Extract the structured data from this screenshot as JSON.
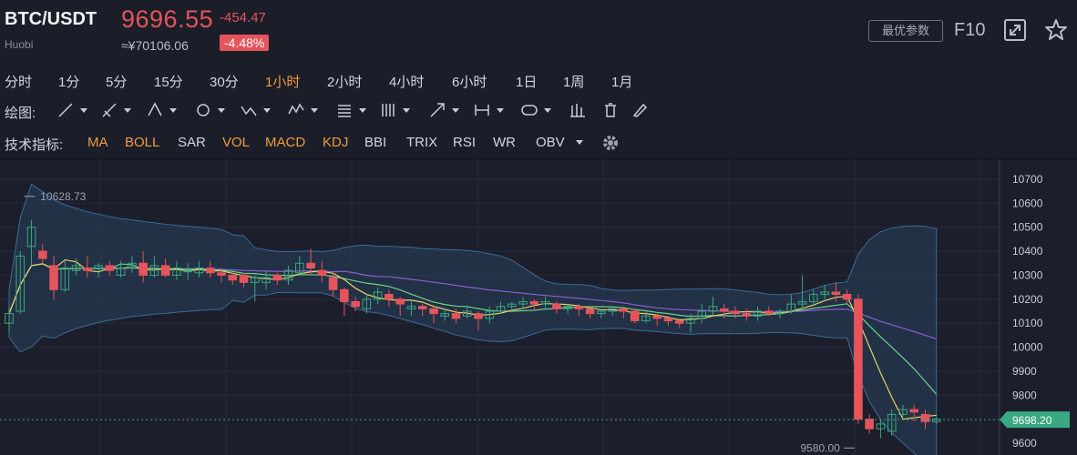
{
  "header": {
    "pair": "BTC/USDT",
    "exchange": "Huobi",
    "price": "9696.55",
    "price_cny": "≈¥70106.06",
    "change": "-454.47",
    "change_pct": "-4.48%",
    "params_button": "最优参数",
    "f10_button": "F10",
    "icons": [
      "expand-icon",
      "star-icon"
    ]
  },
  "timeframes": [
    "分时",
    "1分",
    "5分",
    "15分",
    "30分",
    "1小时",
    "2小时",
    "4小时",
    "6小时",
    "1日",
    "1周",
    "1月"
  ],
  "active_timeframe": "1小时",
  "drawing": {
    "label": "绘图:",
    "tools": [
      "line-tool-icon",
      "ray-tool-icon",
      "triangle-tool-icon",
      "circle-tool-icon",
      "wave-tool-icon",
      "pattern-tool-icon",
      "fib-tool-icon",
      "gann-tool-icon",
      "arrow-tool-icon",
      "measure-tool-icon",
      "note-tool-icon",
      "bars-icon",
      "trash-icon",
      "brush-icon"
    ]
  },
  "indicators": {
    "label": "技术指标:",
    "items": [
      {
        "name": "MA",
        "active": true
      },
      {
        "name": "BOLL",
        "active": true
      },
      {
        "name": "SAR",
        "active": false
      },
      {
        "name": "VOL",
        "active": true
      },
      {
        "name": "MACD",
        "active": true
      },
      {
        "name": "KDJ",
        "active": true
      },
      {
        "name": "BBI",
        "active": false
      },
      {
        "name": "TRIX",
        "active": false
      },
      {
        "name": "RSI",
        "active": false
      },
      {
        "name": "WR",
        "active": false
      },
      {
        "name": "OBV",
        "active": false
      }
    ],
    "settings_icon": "gear-icon"
  },
  "chart_data": {
    "type": "candlestick",
    "y_ticks": [
      10700,
      10600,
      10500,
      10400,
      10300,
      10200,
      10100,
      10000,
      9900,
      9800,
      9600
    ],
    "ylim": [
      9580,
      10700
    ],
    "high_label": "10628.73",
    "low_label": "9580.00",
    "last_price_label": "9698.20",
    "last_price": 9698.2,
    "high": 10628.73,
    "low": 9580.0,
    "colors": {
      "up": "#3aa881",
      "down": "#e5545b",
      "boll_band": "#2b4766",
      "ma5": "#e6d36b",
      "ma10": "#6fd08f",
      "ma30": "#8a5fd1"
    },
    "candles": [
      [
        10100,
        10140,
        10060,
        10170
      ],
      [
        10150,
        10380,
        10140,
        10400
      ],
      [
        10420,
        10500,
        10340,
        10530
      ],
      [
        10400,
        10370,
        10350,
        10430
      ],
      [
        10340,
        10240,
        10200,
        10380
      ],
      [
        10240,
        10330,
        10230,
        10360
      ],
      [
        10320,
        10340,
        10300,
        10370
      ],
      [
        10330,
        10320,
        10290,
        10380
      ],
      [
        10330,
        10340,
        10290,
        10350
      ],
      [
        10340,
        10320,
        10300,
        10360
      ],
      [
        10300,
        10330,
        10290,
        10360
      ],
      [
        10330,
        10350,
        10310,
        10380
      ],
      [
        10350,
        10300,
        10270,
        10400
      ],
      [
        10300,
        10340,
        10290,
        10380
      ],
      [
        10340,
        10300,
        10290,
        10370
      ],
      [
        10300,
        10330,
        10280,
        10360
      ],
      [
        10320,
        10320,
        10280,
        10350
      ],
      [
        10310,
        10330,
        10290,
        10360
      ],
      [
        10330,
        10310,
        10290,
        10360
      ],
      [
        10310,
        10300,
        10270,
        10330
      ],
      [
        10300,
        10280,
        10260,
        10310
      ],
      [
        10300,
        10270,
        10250,
        10310
      ],
      [
        10270,
        10290,
        10190,
        10300
      ],
      [
        10270,
        10290,
        10240,
        10320
      ],
      [
        10300,
        10280,
        10260,
        10310
      ],
      [
        10280,
        10320,
        10260,
        10340
      ],
      [
        10310,
        10350,
        10300,
        10380
      ],
      [
        10350,
        10330,
        10300,
        10410
      ],
      [
        10320,
        10300,
        10270,
        10360
      ],
      [
        10290,
        10240,
        10210,
        10310
      ],
      [
        10240,
        10190,
        10130,
        10250
      ],
      [
        10190,
        10170,
        10150,
        10210
      ],
      [
        10160,
        10200,
        10140,
        10220
      ],
      [
        10200,
        10230,
        10180,
        10250
      ],
      [
        10220,
        10200,
        10170,
        10240
      ],
      [
        10200,
        10180,
        10130,
        10210
      ],
      [
        10160,
        10170,
        10130,
        10190
      ],
      [
        10170,
        10160,
        10130,
        10180
      ],
      [
        10160,
        10140,
        10100,
        10170
      ],
      [
        10130,
        10140,
        10110,
        10160
      ],
      [
        10140,
        10120,
        10100,
        10160
      ],
      [
        10130,
        10150,
        10120,
        10170
      ],
      [
        10140,
        10120,
        10070,
        10150
      ],
      [
        10120,
        10150,
        10100,
        10170
      ],
      [
        10150,
        10170,
        10140,
        10190
      ],
      [
        10170,
        10180,
        10150,
        10190
      ],
      [
        10180,
        10190,
        10160,
        10210
      ],
      [
        10190,
        10180,
        10150,
        10200
      ],
      [
        10180,
        10190,
        10160,
        10210
      ],
      [
        10180,
        10160,
        10140,
        10190
      ],
      [
        10160,
        10170,
        10140,
        10180
      ],
      [
        10170,
        10160,
        10130,
        10180
      ],
      [
        10160,
        10140,
        10120,
        10170
      ],
      [
        10140,
        10150,
        10120,
        10160
      ],
      [
        10150,
        10160,
        10130,
        10170
      ],
      [
        10160,
        10150,
        10120,
        10170
      ],
      [
        10150,
        10110,
        10100,
        10160
      ],
      [
        10110,
        10130,
        10100,
        10150
      ],
      [
        10130,
        10120,
        10090,
        10140
      ],
      [
        10120,
        10110,
        10090,
        10130
      ],
      [
        10110,
        10100,
        10080,
        10120
      ],
      [
        10100,
        10120,
        10060,
        10140
      ],
      [
        10120,
        10150,
        10100,
        10180
      ],
      [
        10150,
        10170,
        10130,
        10210
      ],
      [
        10160,
        10150,
        10120,
        10180
      ],
      [
        10150,
        10140,
        10120,
        10170
      ],
      [
        10140,
        10130,
        10110,
        10160
      ],
      [
        10130,
        10150,
        10110,
        10170
      ],
      [
        10150,
        10140,
        10130,
        10170
      ],
      [
        10140,
        10150,
        10120,
        10160
      ],
      [
        10150,
        10180,
        10140,
        10220
      ],
      [
        10180,
        10190,
        10160,
        10300
      ],
      [
        10190,
        10220,
        10170,
        10240
      ],
      [
        10220,
        10230,
        10200,
        10260
      ],
      [
        10230,
        10220,
        10190,
        10270
      ],
      [
        10220,
        10200,
        10180,
        10240
      ],
      [
        10200,
        9700,
        9680,
        10220
      ],
      [
        9700,
        9660,
        9640,
        9720
      ],
      [
        9660,
        9680,
        9620,
        9700
      ],
      [
        9650,
        9720,
        9630,
        9740
      ],
      [
        9720,
        9740,
        9710,
        9760
      ],
      [
        9740,
        9730,
        9690,
        9760
      ],
      [
        9720,
        9690,
        9660,
        9740
      ],
      [
        9690,
        9700,
        9680,
        9710
      ]
    ]
  }
}
